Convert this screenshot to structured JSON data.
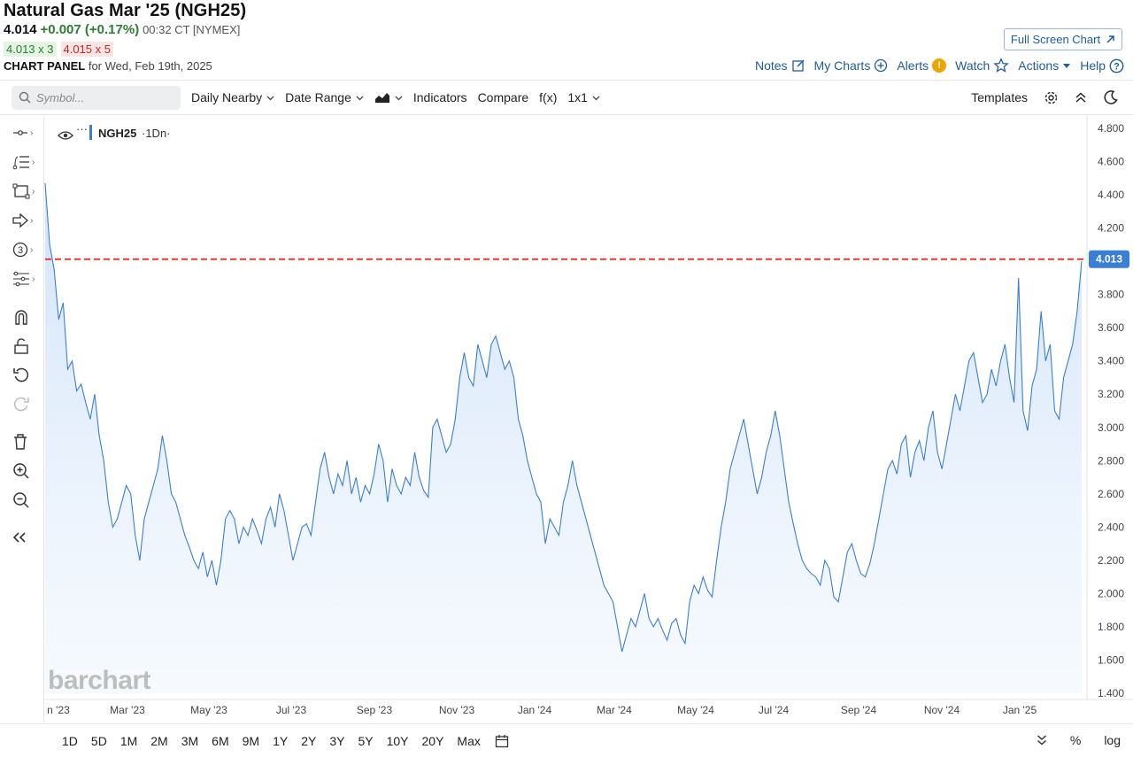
{
  "header": {
    "title": "Natural Gas Mar '25 (NGH25)",
    "last": "4.014",
    "change": "+0.007 (+0.17%)",
    "time": "00:32 CT [NYMEX]",
    "bid": "4.013 x 3",
    "ask": "4.015 x 5",
    "panel_label": "CHART PANEL",
    "panel_date": "for Wed, Feb 19th, 2025",
    "fullscreen_label": "Full Screen Chart",
    "links": {
      "notes": "Notes",
      "my_charts": "My Charts",
      "alerts": "Alerts",
      "watch": "Watch",
      "actions": "Actions",
      "help": "Help"
    }
  },
  "toolbar": {
    "symbol_placeholder": "Symbol...",
    "daily_nearby": "Daily Nearby",
    "date_range": "Date Range",
    "indicators": "Indicators",
    "compare": "Compare",
    "fx": "f(x)",
    "layout": "1x1",
    "templates": "Templates"
  },
  "legend": {
    "symbol": "NGH25",
    "interval": "·1Dn·",
    "menu": "···"
  },
  "watermark": "barchart",
  "bottom": {
    "ranges": [
      "1D",
      "5D",
      "1M",
      "2M",
      "3M",
      "6M",
      "9M",
      "1Y",
      "2Y",
      "3Y",
      "5Y",
      "10Y",
      "20Y",
      "Max"
    ],
    "percent": "%",
    "log": "log"
  },
  "colors": {
    "line": "#3a7fd5",
    "area_top": "#cfe2fa",
    "price_line": "#e53935",
    "price_tag": "#3a7fd5",
    "link": "#1f5c99"
  },
  "chart_data": {
    "type": "area",
    "ylim": [
      1.4,
      4.8
    ],
    "yticks": [
      "4.800",
      "4.600",
      "4.400",
      "4.200",
      "4.000",
      "3.800",
      "3.600",
      "3.400",
      "3.200",
      "3.000",
      "2.800",
      "2.600",
      "2.400",
      "2.200",
      "2.000",
      "1.800",
      "1.600",
      "1.400"
    ],
    "xticks": [
      "n '23",
      "Mar '23",
      "May '23",
      "Jul '23",
      "Sep '23",
      "Nov '23",
      "Jan '24",
      "Mar '24",
      "May '24",
      "Jul '24",
      "Sep '24",
      "Nov '24",
      "Jan '25"
    ],
    "current_price": "4.013",
    "current_value": 4.013,
    "series": [
      {
        "values": [
          4.47,
          4.1,
          3.95,
          3.65,
          3.75,
          3.35,
          3.4,
          3.22,
          3.26,
          3.15,
          3.05,
          3.2,
          2.95,
          2.8,
          2.55,
          2.4,
          2.45,
          2.55,
          2.65,
          2.6,
          2.35,
          2.2,
          2.45,
          2.55,
          2.65,
          2.75,
          2.95,
          2.8,
          2.6,
          2.55,
          2.45,
          2.35,
          2.28,
          2.2,
          2.15,
          2.25,
          2.1,
          2.2,
          2.05,
          2.2,
          2.45,
          2.5,
          2.45,
          2.3,
          2.4,
          2.35,
          2.45,
          2.38,
          2.3,
          2.45,
          2.52,
          2.4,
          2.6,
          2.5,
          2.35,
          2.2,
          2.3,
          2.4,
          2.42,
          2.35,
          2.55,
          2.75,
          2.85,
          2.7,
          2.6,
          2.72,
          2.65,
          2.8,
          2.6,
          2.7,
          2.55,
          2.65,
          2.6,
          2.72,
          2.9,
          2.8,
          2.55,
          2.75,
          2.65,
          2.6,
          2.7,
          2.65,
          2.85,
          2.7,
          2.62,
          2.58,
          3.0,
          3.05,
          2.95,
          2.85,
          2.9,
          3.05,
          3.3,
          3.45,
          3.3,
          3.25,
          3.5,
          3.4,
          3.3,
          3.5,
          3.55,
          3.45,
          3.35,
          3.4,
          3.3,
          3.05,
          2.95,
          2.8,
          2.7,
          2.6,
          2.55,
          2.3,
          2.45,
          2.4,
          2.35,
          2.55,
          2.65,
          2.8,
          2.65,
          2.55,
          2.45,
          2.35,
          2.25,
          2.15,
          2.05,
          2.0,
          1.95,
          1.8,
          1.65,
          1.75,
          1.85,
          1.8,
          1.9,
          2.0,
          1.85,
          1.8,
          1.85,
          1.78,
          1.72,
          1.82,
          1.85,
          1.75,
          1.7,
          1.95,
          2.05,
          2.0,
          2.1,
          2.02,
          1.98,
          2.2,
          2.4,
          2.55,
          2.75,
          2.85,
          2.95,
          3.05,
          2.9,
          2.75,
          2.6,
          2.7,
          2.85,
          2.95,
          3.1,
          2.95,
          2.75,
          2.55,
          2.42,
          2.3,
          2.2,
          2.15,
          2.12,
          2.1,
          2.05,
          2.2,
          2.15,
          1.98,
          1.95,
          2.1,
          2.25,
          2.3,
          2.2,
          2.12,
          2.1,
          2.18,
          2.3,
          2.45,
          2.6,
          2.75,
          2.8,
          2.72,
          2.9,
          2.95,
          2.7,
          2.85,
          2.92,
          2.8,
          3.0,
          3.1,
          2.85,
          2.75,
          2.9,
          3.05,
          3.2,
          3.1,
          3.25,
          3.4,
          3.45,
          3.3,
          3.15,
          3.2,
          3.35,
          3.25,
          3.4,
          3.5,
          3.3,
          3.15,
          3.9,
          3.1,
          2.98,
          3.25,
          3.35,
          3.7,
          3.4,
          3.5,
          3.1,
          3.05,
          3.3,
          3.4,
          3.5,
          3.7,
          4.0
        ]
      }
    ]
  }
}
